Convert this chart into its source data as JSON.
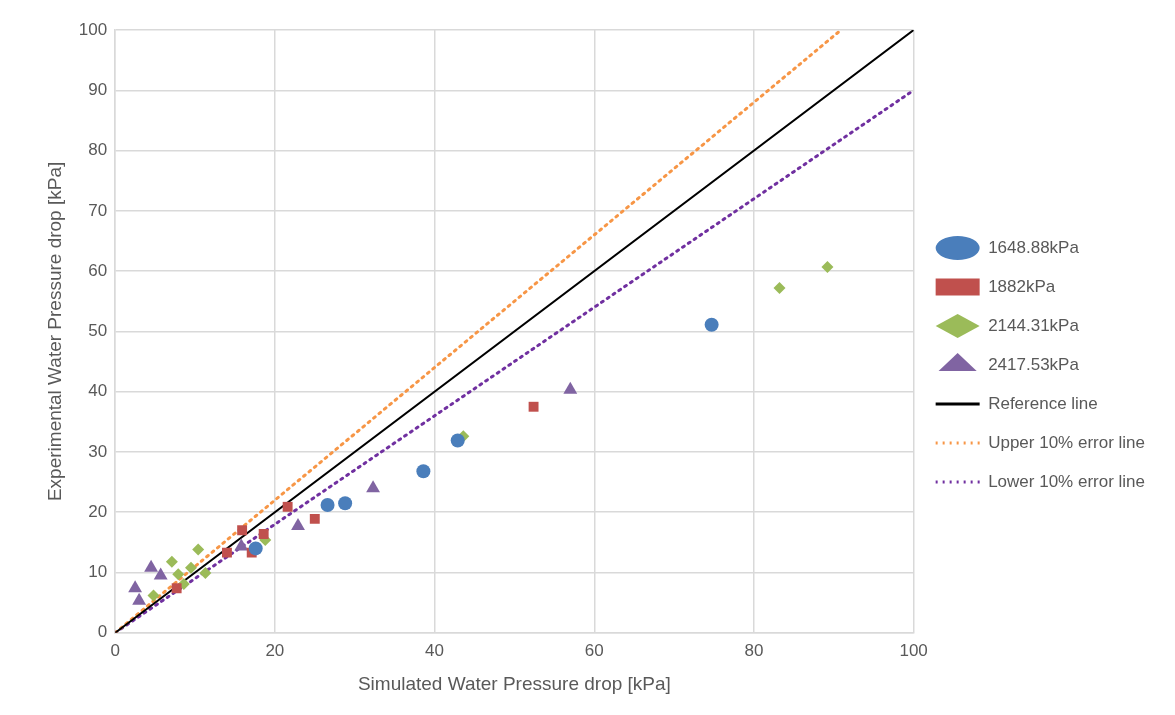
{
  "chart_data": {
    "type": "scatter",
    "xlabel": "Simulated Water Pressure drop [kPa]",
    "ylabel": "Experimental Water Pressure drop [kPa]",
    "xlim": [
      0,
      100
    ],
    "xticks": [
      0,
      20,
      40,
      60,
      80,
      100
    ],
    "ylim": [
      0,
      100
    ],
    "yticks": [
      0,
      10,
      20,
      30,
      40,
      50,
      60,
      70,
      80,
      90,
      100
    ],
    "grid": true,
    "legend": "right",
    "series": [
      {
        "name": "1648.88kPa",
        "color": "#4a7ebb",
        "marker": "circle",
        "x": [
          17.6,
          26.6,
          28.8,
          38.6,
          42.9,
          74.7
        ],
        "values": [
          14.0,
          21.2,
          21.5,
          26.8,
          31.9,
          51.1
        ]
      },
      {
        "name": "1882kPa",
        "color": "#c0504d",
        "marker": "square",
        "x": [
          7.7,
          14.0,
          15.9,
          17.1,
          18.6,
          21.6,
          25.0,
          52.4
        ],
        "values": [
          7.4,
          13.3,
          17.0,
          13.3,
          16.4,
          20.9,
          18.9,
          37.5
        ]
      },
      {
        "name": "2144.31kPa",
        "color": "#9bbb59",
        "marker": "diamond",
        "x": [
          4.8,
          7.1,
          7.9,
          8.6,
          9.5,
          10.4,
          11.3,
          18.8,
          43.6,
          83.2,
          89.2
        ],
        "values": [
          6.2,
          11.8,
          9.7,
          8.1,
          10.8,
          13.8,
          9.9,
          15.4,
          32.6,
          57.2,
          60.7
        ]
      },
      {
        "name": "2417.53kPa",
        "color": "#8064a2",
        "marker": "triangle",
        "x": [
          2.5,
          3.0,
          4.5,
          5.7,
          15.8,
          22.9,
          32.3,
          57.0
        ],
        "values": [
          7.4,
          5.3,
          10.8,
          9.5,
          14.3,
          17.7,
          24.0,
          40.3
        ]
      },
      {
        "name": "Reference line",
        "type": "line",
        "color": "#000000",
        "marker": "none",
        "line_style": "solid",
        "x": [
          0,
          100
        ],
        "values": [
          0,
          100
        ]
      },
      {
        "name": "Upper 10% error line",
        "type": "line",
        "color": "#f79646",
        "marker": "none",
        "line_style": "dotted",
        "x": [
          0,
          90.9
        ],
        "values": [
          0,
          100
        ]
      },
      {
        "name": "Lower 10% error line",
        "type": "line",
        "color": "#7030a0",
        "marker": "none",
        "line_style": "dotted",
        "x": [
          0,
          100
        ],
        "values": [
          0,
          90
        ]
      }
    ]
  }
}
